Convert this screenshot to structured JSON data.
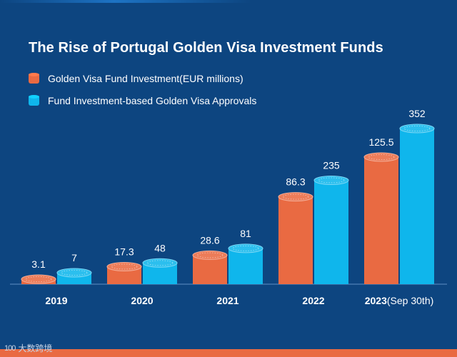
{
  "colors": {
    "background": "#0d4580",
    "investment": "#e96a42",
    "approvals": "#0fb6ec",
    "text": "#ffffff"
  },
  "chart_data": {
    "type": "bar",
    "title": "The Rise of Portugal Golden Visa Investment Funds",
    "categories": [
      "2019",
      "2020",
      "2021",
      "2022",
      "2023(Sep 30th)"
    ],
    "series": [
      {
        "name": "Golden Visa Fund Investment(EUR millions)",
        "values": [
          3.1,
          17.3,
          28.6,
          86.3,
          125.5
        ],
        "color": "#e96a42"
      },
      {
        "name": "Fund Investment-based Golden Visa Approvals",
        "values": [
          7,
          48,
          81,
          235,
          352
        ],
        "color": "#0fb6ec"
      }
    ],
    "value_labels": [
      [
        "3.1",
        "17.3",
        "28.6",
        "86.3",
        "125.5"
      ],
      [
        "7",
        "48",
        "81",
        "235",
        "352"
      ]
    ],
    "xlabel": "",
    "ylabel": "",
    "grid": false,
    "legend": "top-left"
  },
  "watermark": {
    "logo": "100",
    "text": "大数跨境"
  }
}
